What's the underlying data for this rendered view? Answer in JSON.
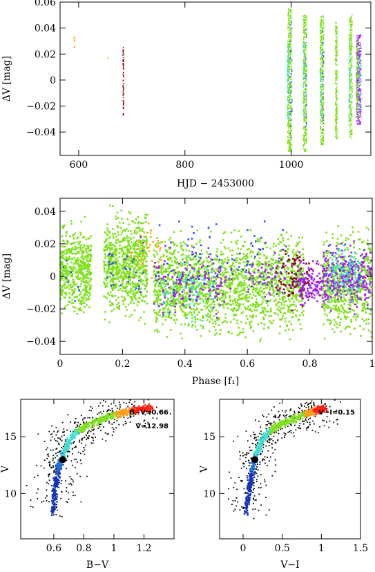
{
  "chart_data": [
    {
      "type": "scatter",
      "name": "light-curve",
      "xlabel": "HJD − 2453000",
      "ylabel": "ΔV [mag]",
      "xlim": [
        565,
        1150
      ],
      "ylim": [
        0.06,
        -0.058
      ],
      "xticks": [
        600,
        800,
        1000
      ],
      "yticks": [
        -0.04,
        -0.02,
        0,
        0.02,
        0.04,
        0.06
      ],
      "xtick_labels": [
        "600",
        "800",
        "1000"
      ],
      "ytick_labels": [
        "−0.04",
        "−0.02",
        "0",
        "0.02",
        "0.04",
        "0.06"
      ],
      "segments": [
        {
          "x": 592,
          "width": 2,
          "ymin": 0.025,
          "ymax": 0.035,
          "color": "#ff9f1c",
          "n": 8
        },
        {
          "x": 655,
          "width": 1,
          "ymin": 0.015,
          "ymax": 0.017,
          "color": "#ff9f1c",
          "n": 2
        },
        {
          "x": 684,
          "width": 1.5,
          "ymin": -0.027,
          "ymax": 0.027,
          "color": "#8b0000",
          "n": 60
        },
        {
          "x": 997,
          "width": 8,
          "ymin": -0.055,
          "ymax": 0.055,
          "color": "#7fe01c",
          "n": 500
        },
        {
          "x": 994,
          "width": 4,
          "ymin": -0.03,
          "ymax": 0.03,
          "color": "#40e0d0",
          "n": 80
        },
        {
          "x": 1000,
          "width": 4,
          "ymin": -0.045,
          "ymax": 0.045,
          "color": "#3050e0",
          "n": 35
        },
        {
          "x": 1026,
          "width": 7,
          "ymin": -0.055,
          "ymax": 0.05,
          "color": "#7fe01c",
          "n": 380
        },
        {
          "x": 1024,
          "width": 3,
          "ymin": -0.03,
          "ymax": 0.03,
          "color": "#40e0d0",
          "n": 40
        },
        {
          "x": 1028,
          "width": 3,
          "ymin": -0.04,
          "ymax": 0.04,
          "color": "#3050e0",
          "n": 25
        },
        {
          "x": 1058,
          "width": 7,
          "ymin": -0.05,
          "ymax": 0.05,
          "color": "#7fe01c",
          "n": 380
        },
        {
          "x": 1056,
          "width": 3,
          "ymin": -0.03,
          "ymax": 0.03,
          "color": "#40e0d0",
          "n": 40
        },
        {
          "x": 1060,
          "width": 3,
          "ymin": -0.04,
          "ymax": 0.04,
          "color": "#3050e0",
          "n": 25
        },
        {
          "x": 1085,
          "width": 4,
          "ymin": -0.045,
          "ymax": 0.045,
          "color": "#7fe01c",
          "n": 220
        },
        {
          "x": 1112,
          "width": 6,
          "ymin": -0.045,
          "ymax": 0.05,
          "color": "#7fe01c",
          "n": 300
        },
        {
          "x": 1110,
          "width": 3,
          "ymin": -0.03,
          "ymax": 0.03,
          "color": "#40e0d0",
          "n": 50
        },
        {
          "x": 1127,
          "width": 9,
          "ymin": -0.035,
          "ymax": 0.035,
          "color": "#a020f0",
          "n": 300
        },
        {
          "x": 1125,
          "width": 5,
          "ymin": -0.03,
          "ymax": 0.03,
          "color": "#7fe01c",
          "n": 120
        },
        {
          "x": 1130,
          "width": 5,
          "ymin": -0.025,
          "ymax": 0.025,
          "color": "#40e0d0",
          "n": 40
        }
      ]
    },
    {
      "type": "scatter",
      "name": "phase-diagram",
      "xlabel": "Phase [f₁]",
      "ylabel": "ΔV [mag]",
      "xlim": [
        0,
        1
      ],
      "ylim": [
        0.048,
        -0.048
      ],
      "xticks": [
        0,
        0.2,
        0.4,
        0.6,
        0.8,
        1
      ],
      "yticks": [
        -0.04,
        -0.02,
        0,
        0.02,
        0.04
      ],
      "xtick_labels": [
        "0",
        "0.2",
        "0.4",
        "0.6",
        "0.8",
        "1"
      ],
      "ytick_labels": [
        "−0.04",
        "−0.02",
        "0",
        "0.02",
        "0.04"
      ],
      "groups": [
        {
          "xmin": 0.0,
          "xmax": 0.1,
          "ymin": -0.03,
          "ymax": 0.04,
          "color": "#7fe01c",
          "n": 500
        },
        {
          "xmin": 0.01,
          "xmax": 0.09,
          "ymin": -0.02,
          "ymax": 0.02,
          "color": "#3050e0",
          "n": 8
        },
        {
          "xmin": 0.14,
          "xmax": 0.28,
          "ymin": -0.035,
          "ymax": 0.048,
          "color": "#7fe01c",
          "n": 800
        },
        {
          "xmin": 0.15,
          "xmax": 0.27,
          "ymin": -0.02,
          "ymax": 0.03,
          "color": "#3050e0",
          "n": 35
        },
        {
          "xmin": 0.22,
          "xmax": 0.33,
          "ymin": -0.005,
          "ymax": 0.035,
          "color": "#ff9f1c",
          "n": 40
        },
        {
          "xmin": 0.3,
          "xmax": 0.78,
          "ymin": -0.045,
          "ymax": 0.035,
          "color": "#7fe01c",
          "n": 1800
        },
        {
          "xmin": 0.3,
          "xmax": 0.55,
          "ymin": -0.03,
          "ymax": 0.02,
          "color": "#a020f0",
          "n": 160
        },
        {
          "xmin": 0.33,
          "xmax": 0.5,
          "ymin": -0.035,
          "ymax": 0.02,
          "color": "#40e0d0",
          "n": 70
        },
        {
          "xmin": 0.3,
          "xmax": 0.78,
          "ymin": -0.03,
          "ymax": 0.045,
          "color": "#3050e0",
          "n": 120
        },
        {
          "xmin": 0.6,
          "xmax": 0.78,
          "ymin": -0.02,
          "ymax": 0.02,
          "color": "#a020f0",
          "n": 60
        },
        {
          "xmin": 0.69,
          "xmax": 0.8,
          "ymin": -0.025,
          "ymax": 0.02,
          "color": "#8b0000",
          "n": 90
        },
        {
          "xmin": 0.76,
          "xmax": 0.86,
          "ymin": -0.025,
          "ymax": 0.015,
          "color": "#a020f0",
          "n": 160
        },
        {
          "xmin": 0.84,
          "xmax": 1.0,
          "ymin": -0.045,
          "ymax": 0.035,
          "color": "#7fe01c",
          "n": 600
        },
        {
          "xmin": 0.84,
          "xmax": 1.0,
          "ymin": -0.025,
          "ymax": 0.025,
          "color": "#a020f0",
          "n": 300
        },
        {
          "xmin": 0.86,
          "xmax": 0.96,
          "ymin": -0.02,
          "ymax": 0.025,
          "color": "#40e0d0",
          "n": 90
        },
        {
          "xmin": 0.85,
          "xmax": 0.98,
          "ymin": -0.02,
          "ymax": 0.03,
          "color": "#3050e0",
          "n": 20
        }
      ]
    },
    {
      "type": "scatter",
      "name": "cmd-bv",
      "xlabel": "B−V",
      "ylabel": "V",
      "annotations": [
        "B−V=0.66",
        "V=12.98"
      ],
      "xlim": [
        0.38,
        1.4
      ],
      "ylim": [
        18.3,
        6.0
      ],
      "xticks": [
        0.6,
        0.8,
        1,
        1.2
      ],
      "yticks": [
        10,
        15
      ],
      "xtick_labels": [
        "0.6",
        "0.8",
        "1",
        "1.2"
      ],
      "ytick_labels": [
        "10",
        "15"
      ],
      "marker": {
        "x": 0.66,
        "y": 12.98
      },
      "track_x": [
        0.59,
        0.61,
        0.63,
        0.66,
        0.7,
        0.76,
        0.84,
        0.93,
        1.02,
        1.12,
        1.25
      ],
      "track_y": [
        8.2,
        10.5,
        12.0,
        13.5,
        14.6,
        15.5,
        16.1,
        16.6,
        17.0,
        17.3,
        17.5
      ],
      "track_colors": [
        "#1030c0",
        "#1030c0",
        "#1a70e0",
        "#40e0d0",
        "#40e0d0",
        "#7fe01c",
        "#7fe01c",
        "#7fe01c",
        "#ff9f1c",
        "#ff2010",
        "#ff2010"
      ],
      "field_color": "#000000"
    },
    {
      "type": "scatter",
      "name": "cmd-vi",
      "xlabel": "V−I",
      "ylabel": "V",
      "annotations": [
        "V−I=0.15"
      ],
      "xlim": [
        -0.3,
        1.5
      ],
      "ylim": [
        18.3,
        6.0
      ],
      "xticks": [
        0,
        0.5,
        1,
        1.5
      ],
      "yticks": [
        10,
        15
      ],
      "xtick_labels": [
        "0",
        "0.5",
        "1",
        "1.5"
      ],
      "ytick_labels": [
        "10",
        "15"
      ],
      "marker": {
        "x": 0.15,
        "y": 12.98
      },
      "track_x": [
        0.04,
        0.08,
        0.12,
        0.16,
        0.24,
        0.34,
        0.48,
        0.64,
        0.8,
        0.92,
        1.05
      ],
      "track_y": [
        8.2,
        10.5,
        12.0,
        13.5,
        14.6,
        15.5,
        16.1,
        16.6,
        17.0,
        17.3,
        17.5
      ],
      "track_colors": [
        "#1030c0",
        "#1030c0",
        "#1a70e0",
        "#40e0d0",
        "#40e0d0",
        "#7fe01c",
        "#7fe01c",
        "#7fe01c",
        "#ff9f1c",
        "#ff2010",
        "#ff2010"
      ],
      "field_color": "#000000"
    }
  ]
}
